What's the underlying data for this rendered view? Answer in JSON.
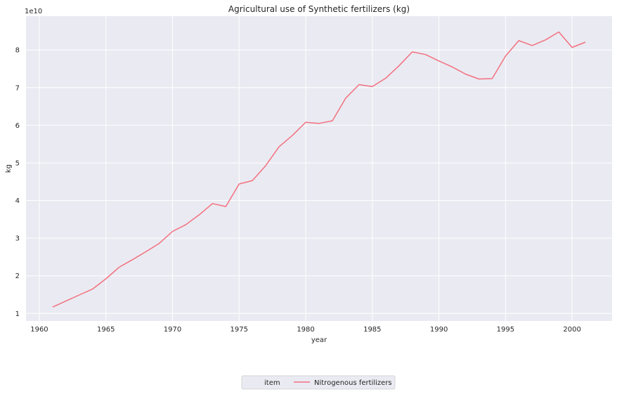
{
  "chart_data": {
    "type": "line",
    "title": "Agricultural use of Synthetic fertilizers (kg)",
    "xlabel": "year",
    "ylabel": "kg",
    "y_offset_label": "1e10",
    "xlim": [
      1959.0,
      2003.0
    ],
    "ylim": [
      0.8,
      8.9
    ],
    "x_ticks": [
      1960,
      1965,
      1970,
      1975,
      1980,
      1985,
      1990,
      1995,
      2000
    ],
    "y_ticks": [
      1,
      2,
      3,
      4,
      5,
      6,
      7,
      8
    ],
    "grid": true,
    "legend": {
      "position": "bottom-center",
      "title": "item",
      "entries": [
        "Nitrogenous fertilizers"
      ]
    },
    "series": [
      {
        "name": "Nitrogenous fertilizers",
        "color": "#f2717f",
        "x": [
          1961,
          1962,
          1963,
          1964,
          1965,
          1966,
          1967,
          1968,
          1969,
          1970,
          1971,
          1972,
          1973,
          1974,
          1975,
          1976,
          1977,
          1978,
          1979,
          1980,
          1981,
          1982,
          1983,
          1984,
          1985,
          1986,
          1987,
          1988,
          1989,
          1990,
          1991,
          1992,
          1993,
          1994,
          1995,
          1996,
          1997,
          1998,
          1999,
          2000,
          2001
        ],
        "values": [
          1.17,
          1.33,
          1.49,
          1.65,
          1.92,
          2.23,
          2.43,
          2.64,
          2.86,
          3.18,
          3.36,
          3.62,
          3.92,
          3.84,
          4.44,
          4.53,
          4.93,
          5.43,
          5.73,
          6.08,
          6.05,
          6.12,
          6.72,
          7.08,
          7.03,
          7.25,
          7.58,
          7.95,
          7.88,
          7.71,
          7.55,
          7.36,
          7.23,
          7.24,
          7.84,
          8.25,
          8.12,
          8.27,
          8.48,
          8.07,
          8.21
        ]
      }
    ]
  }
}
